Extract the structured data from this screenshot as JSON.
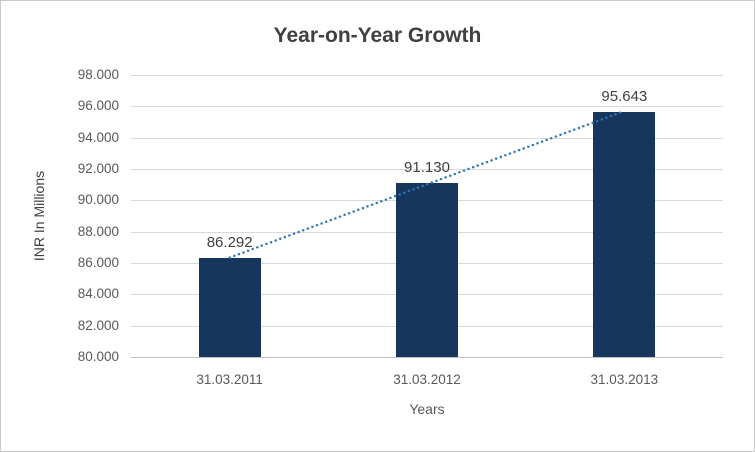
{
  "chart_data": {
    "type": "bar",
    "title": "Year-on-Year Growth",
    "xlabel": "Years",
    "ylabel": "INR In Millions",
    "categories": [
      "31.03.2011",
      "31.03.2012",
      "31.03.2013"
    ],
    "values": [
      86.292,
      91.13,
      95.643
    ],
    "data_labels": [
      "86.292",
      "91.130",
      "95.643"
    ],
    "ylim": [
      80,
      98
    ],
    "ytick_step": 2,
    "ytick_labels": [
      "80.000",
      "82.000",
      "84.000",
      "86.000",
      "88.000",
      "90.000",
      "92.000",
      "94.000",
      "96.000",
      "98.000"
    ],
    "grid": true,
    "legend": "none",
    "bar_color": "#17365d",
    "trendline": {
      "type": "linear",
      "style": "dotted",
      "color": "#2e75b6"
    }
  }
}
